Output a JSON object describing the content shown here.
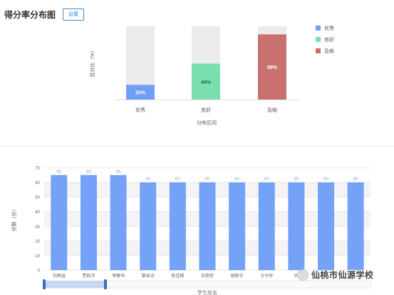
{
  "header": {
    "title": "得分率分布图",
    "settings_label": "设置"
  },
  "colors": {
    "excellent": "#6f9ef5",
    "good": "#79dfb0",
    "pass": "#c97070",
    "track": "#ebebee",
    "bar": "#74a2f6"
  },
  "chart_data": [
    {
      "type": "bar",
      "title": "",
      "xlabel": "分布区间",
      "ylabel": "百分比（%）",
      "categories": [
        "优秀",
        "良好",
        "及格"
      ],
      "values": [
        20,
        49,
        89
      ],
      "value_labels": [
        "20%",
        "49%",
        "89%"
      ],
      "ylim": [
        0,
        100
      ],
      "legend": {
        "position": "top-right",
        "items": [
          "优秀",
          "良好",
          "及格"
        ]
      },
      "grid": false
    },
    {
      "type": "bar",
      "title": "",
      "xlabel": "学生姓名",
      "ylabel": "分数（分）",
      "categories": [
        "刘雨涵",
        "贾跃洋",
        "李静书",
        "黎卓诗",
        "陈佳楠",
        "余艳哲",
        "胡新宇",
        "万子轩",
        "刘",
        "",
        ""
      ],
      "values": [
        65,
        65,
        65,
        60,
        60,
        60,
        60,
        60,
        60,
        60,
        60
      ],
      "ylim": [
        0,
        70
      ],
      "yticks": [
        0,
        10,
        20,
        30,
        40,
        50,
        60,
        70
      ],
      "grid": true
    }
  ],
  "watermark": {
    "text": "仙桃市仙源学校"
  }
}
